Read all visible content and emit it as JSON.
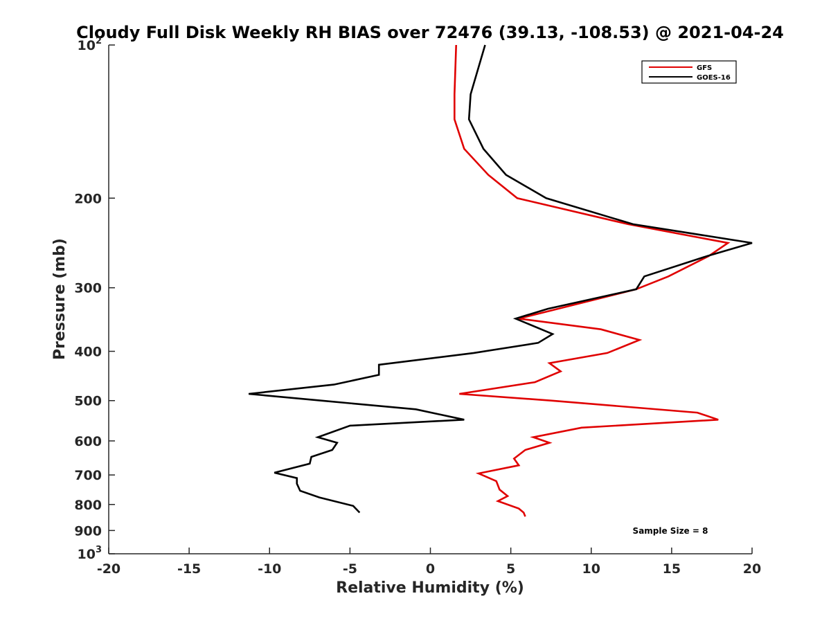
{
  "chart_data": {
    "type": "line",
    "title": "Cloudy Full Disk Weekly RH BIAS over 72476 (39.13, -108.53) @ 2021-04-24",
    "xlabel": "Relative Humidity (%)",
    "ylabel": "Pressure (mb)",
    "xlim": [
      -20,
      20
    ],
    "ylim": [
      100,
      1000
    ],
    "y_scale": "log",
    "y_reversed": true,
    "x_ticks": [
      {
        "value": -20,
        "label": "-20"
      },
      {
        "value": -15,
        "label": "-15"
      },
      {
        "value": -10,
        "label": "-10"
      },
      {
        "value": -5,
        "label": "-5"
      },
      {
        "value": 0,
        "label": "0"
      },
      {
        "value": 5,
        "label": "5"
      },
      {
        "value": 10,
        "label": "10"
      },
      {
        "value": 15,
        "label": "15"
      },
      {
        "value": 20,
        "label": "20"
      }
    ],
    "y_ticks": [
      {
        "value": 100,
        "label": "10",
        "exponent": "2"
      },
      {
        "value": 200,
        "label": "200"
      },
      {
        "value": 300,
        "label": "300"
      },
      {
        "value": 400,
        "label": "400"
      },
      {
        "value": 500,
        "label": "500"
      },
      {
        "value": 600,
        "label": "600"
      },
      {
        "value": 700,
        "label": "700"
      },
      {
        "value": 800,
        "label": "800"
      },
      {
        "value": 900,
        "label": "900"
      },
      {
        "value": 1000,
        "label": "10",
        "exponent": "3"
      }
    ],
    "grid": false,
    "legend_position": "top-right",
    "series": [
      {
        "name": "GFS",
        "color": "#e00000",
        "points": [
          [
            1.6,
            100
          ],
          [
            1.5,
            125
          ],
          [
            1.5,
            140
          ],
          [
            2.1,
            160
          ],
          [
            3.6,
            180
          ],
          [
            5.4,
            200
          ],
          [
            12.3,
            225
          ],
          [
            18.5,
            245
          ],
          [
            17.3,
            260
          ],
          [
            14.8,
            285
          ],
          [
            12.8,
            302
          ],
          [
            5.5,
            345
          ],
          [
            10.6,
            362
          ],
          [
            13.0,
            380
          ],
          [
            11.0,
            403
          ],
          [
            7.4,
            422
          ],
          [
            8.1,
            438
          ],
          [
            6.5,
            460
          ],
          [
            1.8,
            485
          ],
          [
            7.5,
            500
          ],
          [
            16.6,
            528
          ],
          [
            17.9,
            545
          ],
          [
            9.4,
            565
          ],
          [
            6.4,
            590
          ],
          [
            7.4,
            605
          ],
          [
            5.9,
            625
          ],
          [
            5.2,
            650
          ],
          [
            5.5,
            670
          ],
          [
            3.0,
            695
          ],
          [
            4.1,
            720
          ],
          [
            4.3,
            748
          ],
          [
            4.8,
            770
          ],
          [
            4.2,
            788
          ],
          [
            5.5,
            815
          ],
          [
            5.8,
            830
          ],
          [
            5.9,
            845
          ]
        ]
      },
      {
        "name": "GOES-16",
        "color": "#000000",
        "points": [
          [
            3.4,
            100
          ],
          [
            2.5,
            125
          ],
          [
            2.4,
            140
          ],
          [
            3.3,
            160
          ],
          [
            4.7,
            180
          ],
          [
            7.2,
            200
          ],
          [
            12.6,
            225
          ],
          [
            20.0,
            245
          ],
          [
            17.2,
            260
          ],
          [
            13.3,
            285
          ],
          [
            12.8,
            302
          ],
          [
            7.3,
            330
          ],
          [
            5.3,
            345
          ],
          [
            7.6,
            370
          ],
          [
            6.7,
            385
          ],
          [
            2.7,
            403
          ],
          [
            -3.2,
            425
          ],
          [
            -3.2,
            445
          ],
          [
            -6.0,
            465
          ],
          [
            -11.3,
            485
          ],
          [
            -6.8,
            500
          ],
          [
            -0.9,
            520
          ],
          [
            2.1,
            545
          ],
          [
            -5.0,
            560
          ],
          [
            -7.0,
            590
          ],
          [
            -5.8,
            605
          ],
          [
            -6.1,
            625
          ],
          [
            -7.4,
            645
          ],
          [
            -7.5,
            665
          ],
          [
            -9.7,
            693
          ],
          [
            -8.3,
            710
          ],
          [
            -8.3,
            728
          ],
          [
            -8.1,
            752
          ],
          [
            -6.9,
            775
          ],
          [
            -4.8,
            805
          ],
          [
            -4.4,
            830
          ]
        ]
      }
    ],
    "annotation": "Sample Size = 8"
  }
}
